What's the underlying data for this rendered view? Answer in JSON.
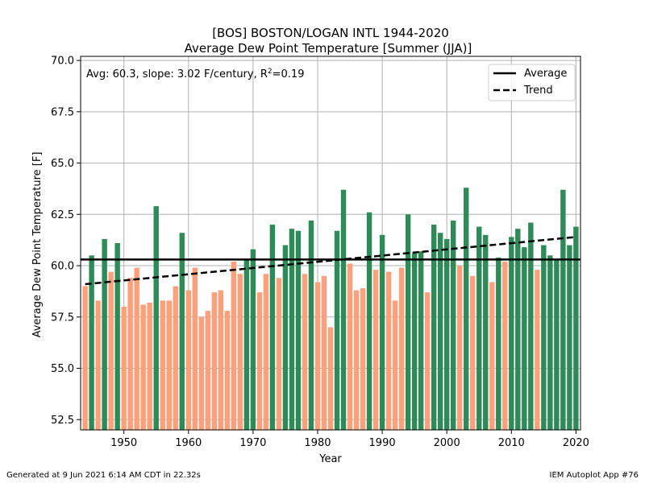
{
  "chart_data": {
    "type": "bar",
    "title": "[BOS] BOSTON/LOGAN INTL 1944-2020",
    "subtitle": "Average Dew Point Temperature [Summer (JJA)]",
    "xlabel": "Year",
    "ylabel": "Average Dew Point Temperature [F]",
    "xlim": [
      1943.3,
      2020.7
    ],
    "ylim": [
      52.0,
      70.2
    ],
    "xticks": [
      1950,
      1960,
      1970,
      1980,
      1990,
      2000,
      2010,
      2020
    ],
    "yticks": [
      52.5,
      55.0,
      57.5,
      60.0,
      62.5,
      65.0,
      67.5,
      70.0
    ],
    "grid": true,
    "stats_text": "Avg: 60.3, slope: 3.02 F/century, R",
    "stats_sup": "2",
    "stats_tail": "=0.19",
    "average": 60.3,
    "trend": {
      "start": [
        1944,
        59.1
      ],
      "end": [
        2020,
        61.4
      ]
    },
    "legend": {
      "position": "top-right",
      "entries": [
        "Average",
        "Trend"
      ]
    },
    "colors": {
      "above": "#2e8b57",
      "below": "#ffa07a",
      "average": "#000000",
      "trend": "#000000"
    },
    "x": [
      1944,
      1945,
      1946,
      1947,
      1948,
      1949,
      1950,
      1951,
      1952,
      1953,
      1954,
      1955,
      1956,
      1957,
      1958,
      1959,
      1960,
      1961,
      1962,
      1963,
      1964,
      1965,
      1966,
      1967,
      1968,
      1969,
      1970,
      1971,
      1972,
      1973,
      1974,
      1975,
      1976,
      1977,
      1978,
      1979,
      1980,
      1981,
      1982,
      1983,
      1984,
      1985,
      1986,
      1987,
      1988,
      1989,
      1990,
      1991,
      1992,
      1993,
      1994,
      1995,
      1996,
      1997,
      1998,
      1999,
      2000,
      2001,
      2002,
      2003,
      2004,
      2005,
      2006,
      2007,
      2008,
      2009,
      2010,
      2011,
      2012,
      2013,
      2014,
      2015,
      2016,
      2017,
      2018,
      2019,
      2020
    ],
    "values": [
      59.0,
      60.5,
      58.3,
      61.3,
      59.7,
      61.1,
      58.0,
      59.4,
      59.9,
      58.1,
      58.2,
      62.9,
      58.3,
      58.3,
      59.0,
      61.6,
      58.8,
      59.9,
      57.5,
      57.8,
      58.7,
      58.8,
      57.8,
      60.2,
      59.6,
      60.3,
      60.8,
      58.7,
      59.6,
      62.0,
      59.4,
      61.0,
      61.8,
      61.7,
      59.6,
      62.2,
      59.2,
      59.5,
      57.0,
      61.7,
      63.7,
      60.1,
      58.8,
      58.9,
      62.6,
      59.8,
      61.5,
      59.7,
      58.3,
      59.9,
      62.5,
      60.6,
      60.7,
      58.7,
      62.0,
      61.6,
      61.3,
      62.2,
      60.0,
      63.8,
      59.5,
      61.9,
      61.5,
      59.2,
      60.4,
      60.2,
      61.4,
      61.8,
      60.9,
      62.1,
      59.8,
      61.0,
      60.5,
      60.3,
      63.7,
      61.0,
      61.9
    ]
  },
  "footer": {
    "left": "Generated at 9 Jun 2021 6:14 AM CDT in 22.32s",
    "right": "IEM Autoplot App #76"
  }
}
